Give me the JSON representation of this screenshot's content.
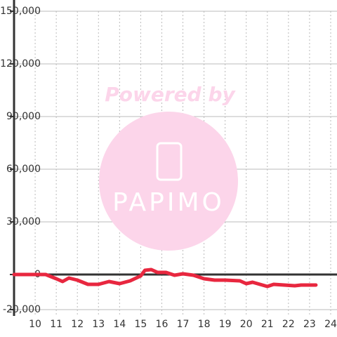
{
  "chart_data": {
    "type": "line",
    "watermark": {
      "line1": "Powered by",
      "line2": "PAPIMO"
    },
    "x": [
      9,
      10.5,
      11,
      11.3,
      11.6,
      12,
      12.5,
      13,
      13.5,
      14,
      14.5,
      15,
      15.2,
      15.5,
      15.8,
      16.2,
      16.6,
      17,
      17.5,
      18,
      18.5,
      19,
      19.7,
      20,
      20.3,
      21,
      21.3,
      21.8,
      22.3,
      22.6,
      23.3
    ],
    "series": [
      {
        "color": "#e8273f",
        "values": [
          0,
          0,
          -2400,
          -4000,
          -2000,
          -3200,
          -5600,
          -5600,
          -4000,
          -5200,
          -3600,
          -800,
          2400,
          2800,
          1200,
          1200,
          -400,
          400,
          -400,
          -2400,
          -3200,
          -3200,
          -3600,
          -5200,
          -4400,
          -6800,
          -5600,
          -6000,
          -6400,
          -6000,
          -6000
        ]
      }
    ],
    "xlim": [
      9,
      24.3
    ],
    "xticks": [
      10,
      11,
      12,
      13,
      14,
      15,
      16,
      17,
      18,
      19,
      20,
      21,
      22,
      23,
      24
    ],
    "ylim": [
      -20000,
      150000
    ],
    "yticks": [
      {
        "value": -20000,
        "label": "-20,000"
      },
      0,
      {
        "value": 30000,
        "label": "30,000"
      },
      {
        "value": 60000,
        "label": "60,000"
      },
      {
        "value": 90000,
        "label": "90,000"
      },
      {
        "value": 120000,
        "label": "120,000"
      },
      {
        "value": 150000,
        "label": "150,000"
      }
    ],
    "grid": true
  }
}
